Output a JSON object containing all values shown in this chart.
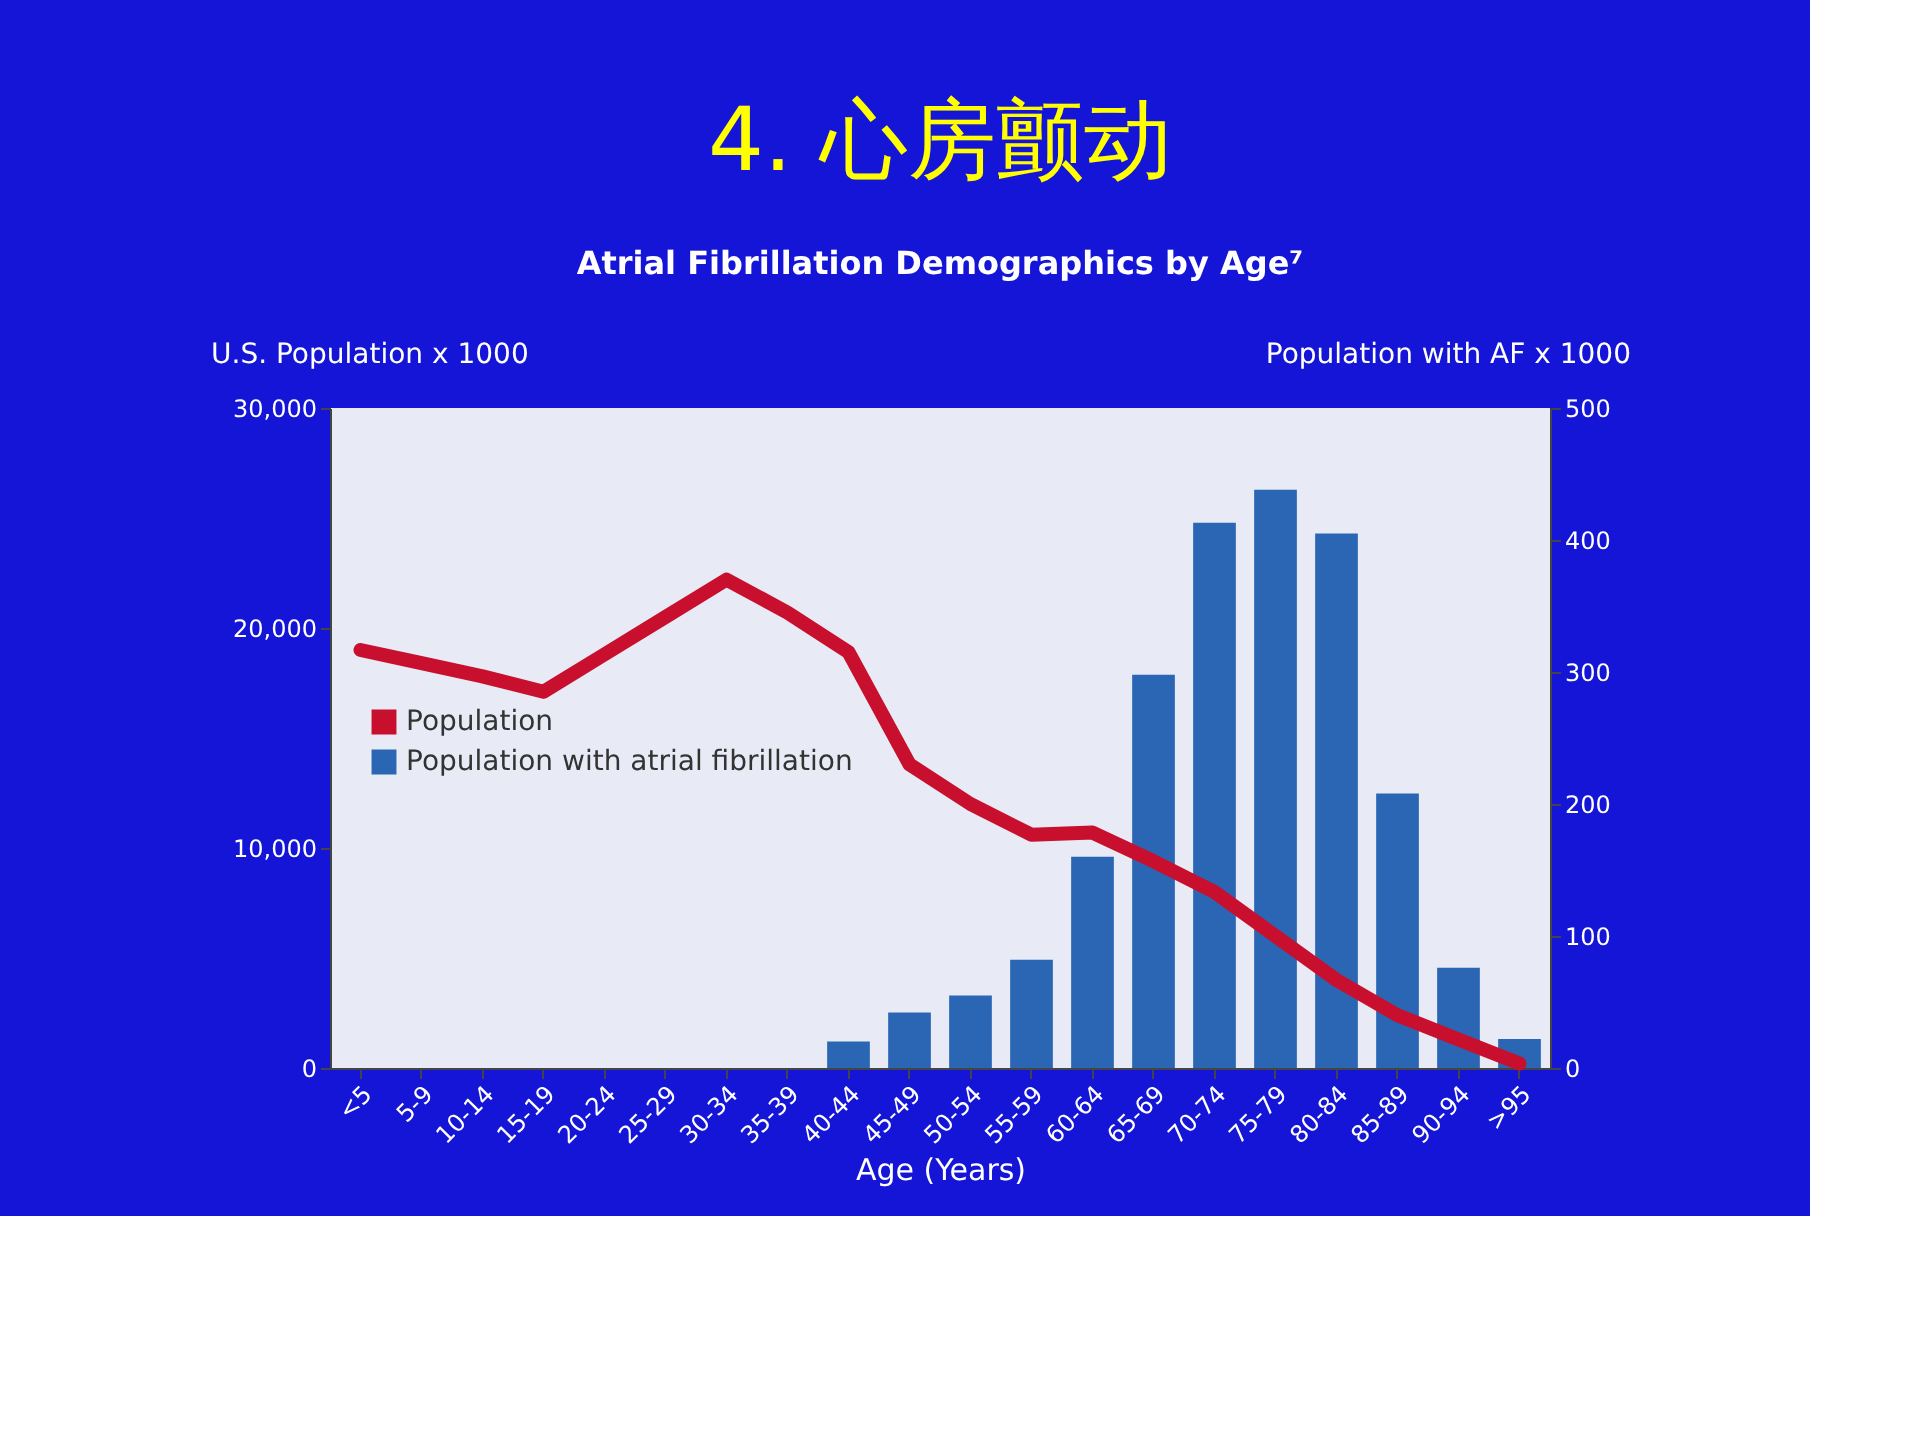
{
  "chart_data": {
    "type": "bar",
    "title": "4. 心房颤动",
    "subtitle": "Atrial Fibrillation Demographics by Age⁷",
    "xlabel": "Age (Years)",
    "ylabel": "U.S. Population x 1000",
    "y2label": "Population with AF x 1000",
    "categories": [
      "<5",
      "5-9",
      "10-14",
      "15-19",
      "20-24",
      "25-29",
      "30-34",
      "35-39",
      "40-44",
      "45-49",
      "50-54",
      "55-59",
      "60-64",
      "65-69",
      "70-74",
      "75-79",
      "80-84",
      "85-89",
      "90-94",
      ">95"
    ],
    "series": [
      {
        "name": "Population",
        "type": "line",
        "color": "#c8102e",
        "values": [
          19000,
          18400,
          17800,
          17100,
          18800,
          20500,
          22200,
          20700,
          18900,
          13800,
          12000,
          10600,
          10700,
          9400,
          8000,
          6000,
          4000,
          2400,
          1300,
          200
        ]
      },
      {
        "name": "Population with atrial fibrillation",
        "axis": "y2",
        "color": "#2a66b3",
        "values": [
          null,
          null,
          null,
          null,
          null,
          null,
          null,
          null,
          20,
          42,
          55,
          82,
          160,
          298,
          413,
          438,
          405,
          208,
          76,
          22
        ]
      }
    ],
    "ylim": [
      0,
      30000
    ],
    "yticks": [
      {
        "value": 0,
        "label": "0"
      },
      {
        "value": 10000,
        "label": "10,000"
      },
      {
        "value": 20000,
        "label": "20,000"
      },
      {
        "value": 30000,
        "label": "30,000"
      }
    ],
    "y2lim": [
      0,
      500
    ],
    "y2ticks": [
      0,
      100,
      200,
      300,
      400,
      500
    ],
    "legend": "left",
    "grid": false
  }
}
